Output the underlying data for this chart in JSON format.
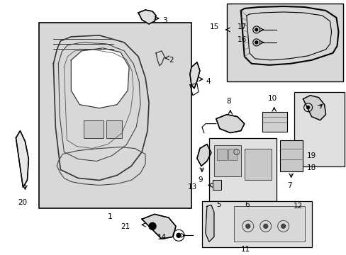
{
  "background_color": "#ffffff",
  "line_color": "#000000",
  "gray_fill": "#d4d4d4",
  "figsize": [
    4.89,
    3.6
  ],
  "dpi": 100
}
